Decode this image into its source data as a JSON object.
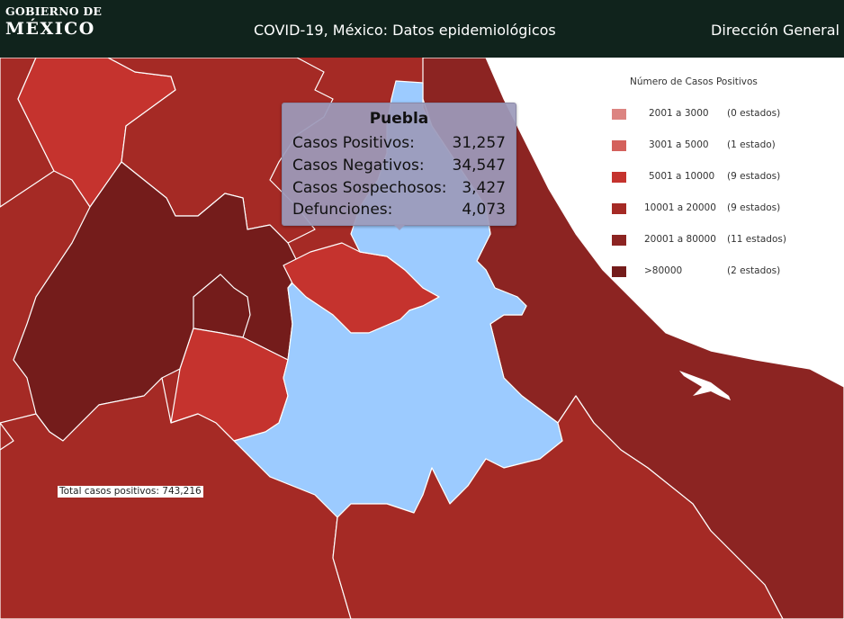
{
  "header": {
    "logo_line1": "GOBIERNO DE",
    "logo_line2": "MÉXICO",
    "title": "COVID-19, México: Datos epidemiológicos",
    "right_label": "Dirección General"
  },
  "tooltip": {
    "state": "Puebla",
    "rows": [
      {
        "label": "Casos Positivos:",
        "value": "31,257"
      },
      {
        "label": "Casos Negativos:",
        "value": "34,547"
      },
      {
        "label": "Casos Sospechosos:",
        "value": "3,427"
      },
      {
        "label": "Defunciones:",
        "value": "4,073"
      }
    ]
  },
  "legend": {
    "title": "Número de Casos Positivos",
    "items": [
      {
        "range": "2001 a    3000",
        "count": "(0 estados)",
        "color": "#dc8481"
      },
      {
        "range": "3001 a    5000",
        "count": "(1 estado)",
        "color": "#d4615c"
      },
      {
        "range": "5001 a   10000",
        "count": "(9 estados)",
        "color": "#c5332e"
      },
      {
        "range": "10001 a   20000",
        "count": "(9 estados)",
        "color": "#a52a25"
      },
      {
        "range": "20001 a   80000",
        "count": "(11 estados)",
        "color": "#8c2422"
      },
      {
        "range": ">80000",
        "count": "(2 estados)",
        "color": "#741c1b"
      }
    ]
  },
  "total_label": "Total casos positivos: 743,216",
  "map_colors": {
    "selected": "#9ccbff",
    "r5001": "#c5332e",
    "r10001": "#a52a25",
    "r20001": "#8c2422",
    "r80000": "#741c1b",
    "plane": "#ffffff"
  }
}
